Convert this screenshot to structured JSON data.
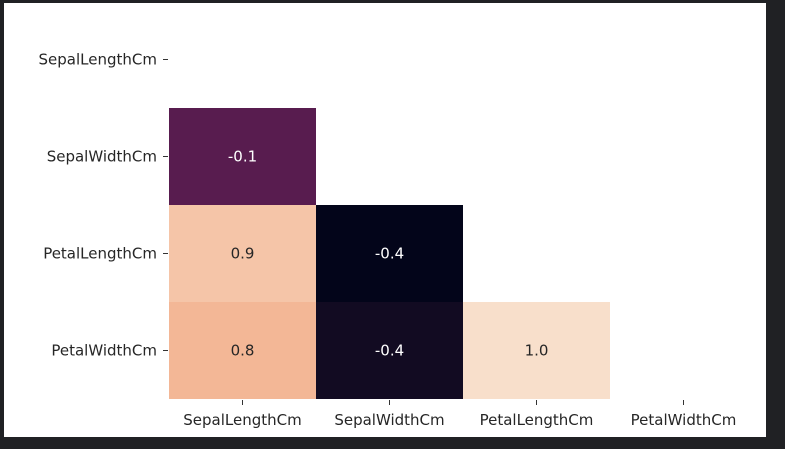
{
  "chart_data": {
    "type": "heatmap",
    "title": "",
    "xlabel": "",
    "ylabel": "",
    "masked": "upper-triangle-and-diagonal",
    "colorbar": false,
    "colormap": "rocket",
    "row_labels": [
      "SepalLengthCm",
      "SepalWidthCm",
      "PetalLengthCm",
      "PetalWidthCm"
    ],
    "col_labels": [
      "SepalLengthCm",
      "SepalWidthCm",
      "PetalLengthCm",
      "PetalWidthCm"
    ],
    "cells": [
      {
        "row": 1,
        "col": 0,
        "value": -0.1,
        "label": "-0.1",
        "color": "#581c4f"
      },
      {
        "row": 2,
        "col": 0,
        "value": 0.9,
        "label": "0.9",
        "color": "#f5c5a8"
      },
      {
        "row": 2,
        "col": 1,
        "value": -0.4,
        "label": "-0.4",
        "color": "#03051a"
      },
      {
        "row": 3,
        "col": 0,
        "value": 0.8,
        "label": "0.8",
        "color": "#f3b796"
      },
      {
        "row": 3,
        "col": 1,
        "value": -0.4,
        "label": "-0.4",
        "color": "#120b22"
      },
      {
        "row": 3,
        "col": 2,
        "value": 1.0,
        "label": "1.0",
        "color": "#f8dfcb"
      }
    ]
  }
}
